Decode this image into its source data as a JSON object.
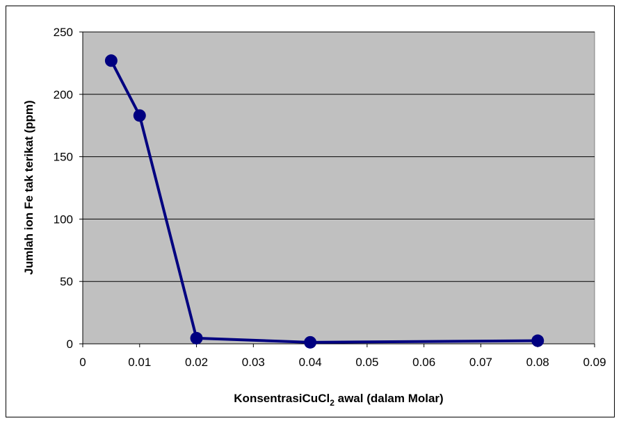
{
  "chart_data": {
    "type": "line",
    "x": [
      0.005,
      0.01,
      0.02,
      0.04,
      0.08
    ],
    "series": [
      {
        "values": [
          227,
          183,
          4.5,
          1.2,
          2.5
        ],
        "color": "#000080"
      }
    ],
    "xlabel_main": "KonsentrasiCuCl",
    "xlabel_sub": "2",
    "xlabel_tail": " awal (dalam Molar)",
    "ylabel": "Jumlah ion Fe tak terikat (ppm)",
    "xlim": [
      0,
      0.09
    ],
    "ylim": [
      0,
      250
    ],
    "x_ticks": [
      "0",
      "0.01",
      "0.02",
      "0.03",
      "0.04",
      "0.05",
      "0.06",
      "0.07",
      "0.08",
      "0.09"
    ],
    "y_ticks": [
      "0",
      "50",
      "100",
      "150",
      "200",
      "250"
    ],
    "grid": true,
    "plot_background": "#c0c0c0",
    "legend": "none"
  }
}
